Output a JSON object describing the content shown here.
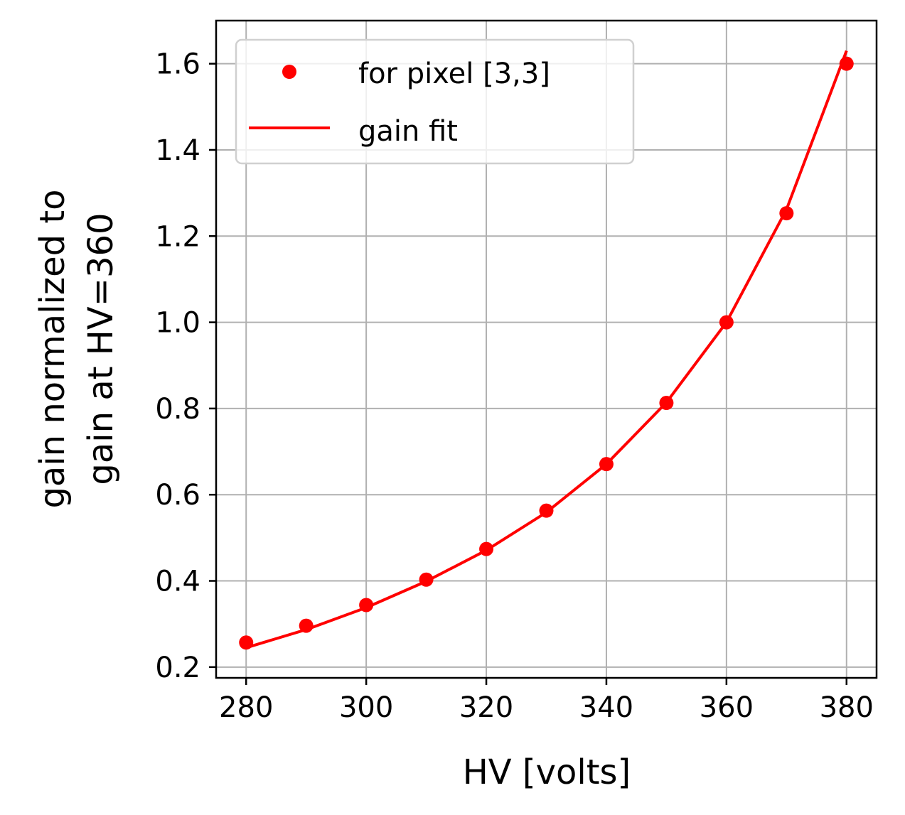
{
  "chart_data": {
    "type": "scatter",
    "title": "",
    "xlabel": "HV [volts]",
    "ylabel": [
      "gain normalized to",
      "gain at HV=360"
    ],
    "xlim": [
      275,
      385
    ],
    "ylim": [
      0.175,
      1.7
    ],
    "xticks": [
      280,
      300,
      320,
      340,
      360,
      380
    ],
    "xtick_labels": [
      "280",
      "300",
      "320",
      "340",
      "360",
      "380"
    ],
    "yticks": [
      0.2,
      0.4,
      0.6,
      0.8,
      1.0,
      1.2,
      1.4,
      1.6
    ],
    "ytick_labels": [
      "0.2",
      "0.4",
      "0.6",
      "0.8",
      "1.0",
      "1.2",
      "1.4",
      "1.6"
    ],
    "grid": true,
    "legend_position": "top-left",
    "series": [
      {
        "name": "for pixel [3,3]",
        "kind": "points",
        "color": "#ff0000",
        "x": [
          280,
          290,
          300,
          310,
          320,
          330,
          340,
          350,
          360,
          370,
          380
        ],
        "y": [
          0.257,
          0.296,
          0.344,
          0.403,
          0.474,
          0.563,
          0.671,
          0.813,
          1.0,
          1.253,
          1.6
        ]
      },
      {
        "name": "gain fit",
        "kind": "line",
        "color": "#ff0000",
        "x": [
          280,
          290,
          300,
          310,
          320,
          330,
          340,
          350,
          360,
          370,
          380
        ],
        "y": [
          0.245,
          0.287,
          0.338,
          0.399,
          0.471,
          0.559,
          0.671,
          0.814,
          1.0,
          1.262,
          1.63
        ]
      }
    ]
  }
}
